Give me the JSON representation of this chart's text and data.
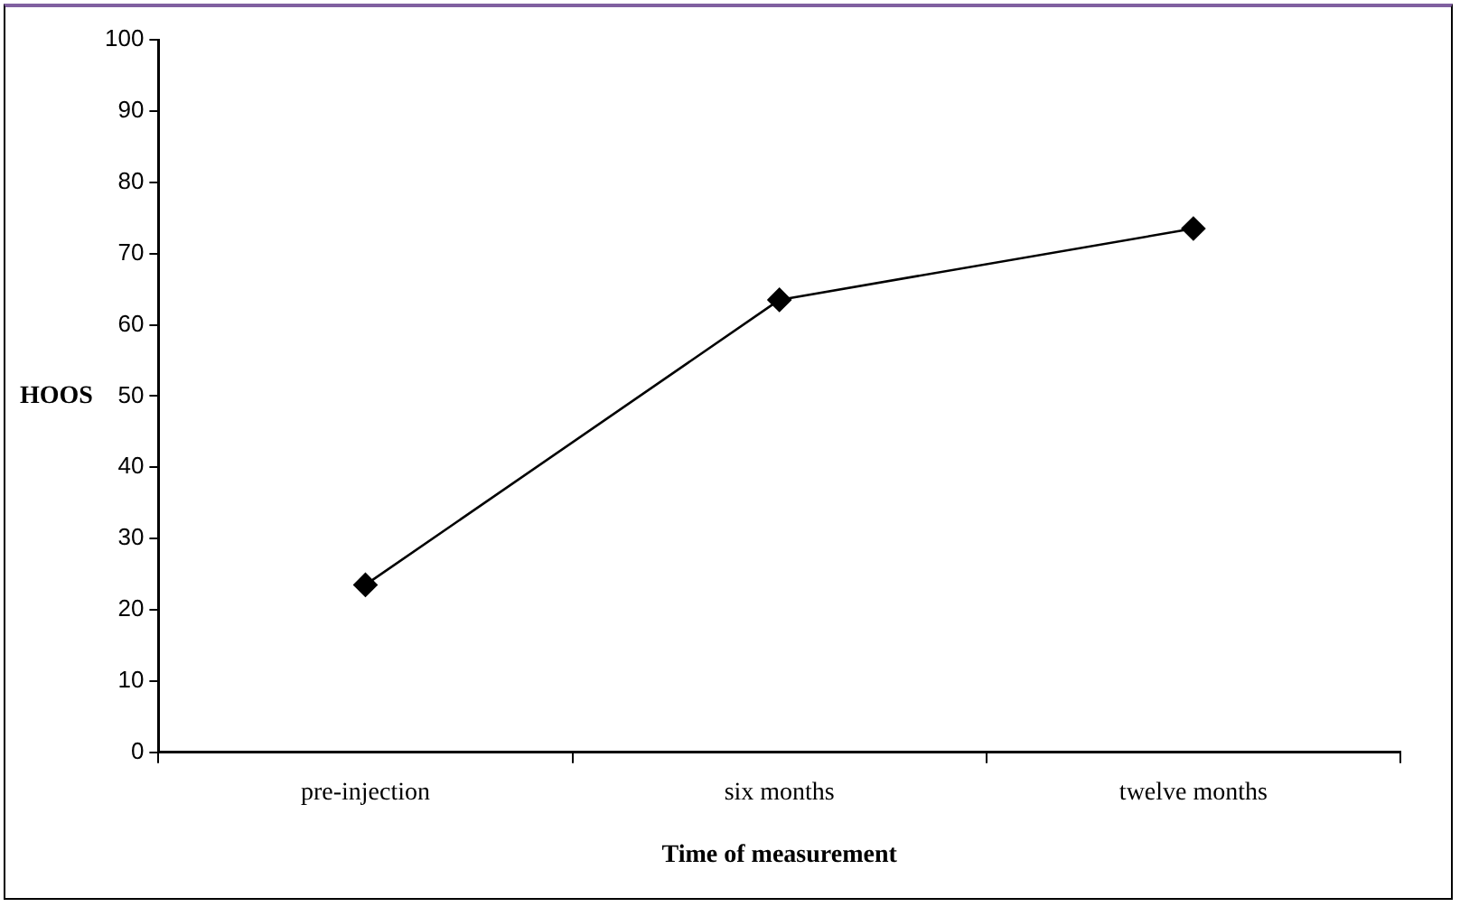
{
  "chart_data": {
    "type": "line",
    "xlabel": "Time of measurement",
    "ylabel": "HOOS",
    "categories": [
      "pre-injection",
      "six months",
      "twelve months"
    ],
    "series": [
      {
        "color": "#000000",
        "values": [
          23.5,
          63.5,
          73.5
        ]
      }
    ],
    "ylim": [
      0,
      100
    ],
    "yticks": [
      0,
      10,
      20,
      30,
      40,
      50,
      60,
      70,
      80,
      90,
      100
    ],
    "grid": false,
    "legend": false,
    "marker": "diamond",
    "line_style": "solid"
  }
}
